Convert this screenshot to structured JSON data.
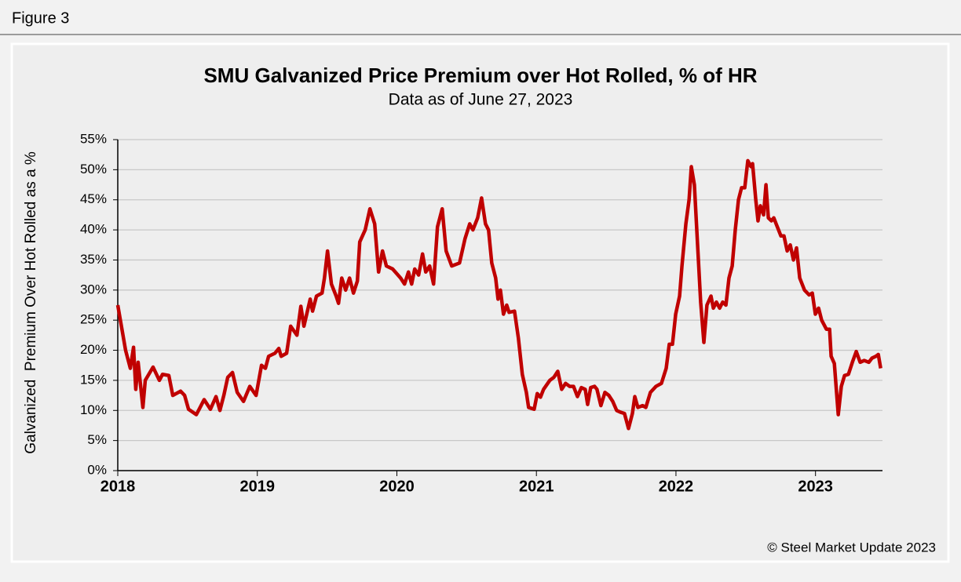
{
  "figure_label": "Figure 3",
  "footer": "© Steel Market Update 2023",
  "chart_data": {
    "type": "line",
    "title": "SMU Galvanized Price Premium over Hot Rolled, % of HR",
    "subtitle": "Data as of June 27, 2023",
    "y_label": "Galvanized  Premium Over Hot Rolled as a %",
    "grid": true,
    "xlim": [
      2018,
      2023.48
    ],
    "xticks": [
      2018,
      2019,
      2020,
      2021,
      2022,
      2023
    ],
    "ylim": [
      0,
      55
    ],
    "yticks": [
      {
        "value": 0,
        "label": "0%"
      },
      {
        "value": 5,
        "label": "5%"
      },
      {
        "value": 10,
        "label": "10%"
      },
      {
        "value": 15,
        "label": "15%"
      },
      {
        "value": 20,
        "label": "20%"
      },
      {
        "value": 25,
        "label": "25%"
      },
      {
        "value": 30,
        "label": "30%"
      },
      {
        "value": 35,
        "label": "35%"
      },
      {
        "value": 40,
        "label": "40%"
      },
      {
        "value": 45,
        "label": "45%"
      },
      {
        "value": 50,
        "label": "50%"
      },
      {
        "value": 55,
        "label": "55%"
      }
    ],
    "x": [
      2018.0,
      2018.056,
      2018.09,
      2018.113,
      2018.129,
      2018.146,
      2018.18,
      2018.197,
      2018.253,
      2018.298,
      2018.321,
      2018.366,
      2018.394,
      2018.45,
      2018.479,
      2018.507,
      2018.563,
      2018.619,
      2018.664,
      2018.704,
      2018.732,
      2018.76,
      2018.788,
      2018.822,
      2018.856,
      2018.901,
      2018.946,
      2018.991,
      2019.03,
      2019.058,
      2019.081,
      2019.126,
      2019.154,
      2019.171,
      2019.21,
      2019.239,
      2019.284,
      2019.312,
      2019.334,
      2019.379,
      2019.396,
      2019.424,
      2019.464,
      2019.481,
      2019.503,
      2019.531,
      2019.565,
      2019.582,
      2019.605,
      2019.633,
      2019.661,
      2019.689,
      2019.717,
      2019.734,
      2019.773,
      2019.807,
      2019.841,
      2019.869,
      2019.897,
      2019.925,
      2019.97,
      2020.027,
      2020.055,
      2020.083,
      2020.106,
      2020.128,
      2020.156,
      2020.184,
      2020.207,
      2020.235,
      2020.263,
      2020.291,
      2020.325,
      2020.353,
      2020.393,
      2020.449,
      2020.488,
      2020.522,
      2020.545,
      2020.579,
      2020.607,
      2020.635,
      2020.657,
      2020.68,
      2020.708,
      2020.725,
      2020.742,
      2020.764,
      2020.787,
      2020.804,
      2020.843,
      2020.871,
      2020.899,
      2020.928,
      2020.944,
      2020.984,
      2021.006,
      2021.029,
      2021.051,
      2021.096,
      2021.125,
      2021.153,
      2021.181,
      2021.209,
      2021.238,
      2021.266,
      2021.294,
      2021.322,
      2021.35,
      2021.367,
      2021.389,
      2021.417,
      2021.434,
      2021.462,
      2021.491,
      2021.519,
      2021.547,
      2021.575,
      2021.603,
      2021.631,
      2021.66,
      2021.688,
      2021.705,
      2021.727,
      2021.761,
      2021.784,
      2021.817,
      2021.857,
      2021.896,
      2021.93,
      2021.952,
      2021.975,
      2021.998,
      2022.026,
      2022.043,
      2022.071,
      2022.094,
      2022.11,
      2022.132,
      2022.155,
      2022.177,
      2022.2,
      2022.222,
      2022.251,
      2022.268,
      2022.29,
      2022.313,
      2022.335,
      2022.358,
      2022.38,
      2022.403,
      2022.425,
      2022.448,
      2022.47,
      2022.493,
      2022.515,
      2022.538,
      2022.549,
      2022.572,
      2022.588,
      2022.605,
      2022.628,
      2022.645,
      2022.662,
      2022.684,
      2022.701,
      2022.718,
      2022.752,
      2022.774,
      2022.797,
      2022.819,
      2022.842,
      2022.864,
      2022.887,
      2022.921,
      2022.954,
      2022.977,
      2022.999,
      2023.022,
      2023.044,
      2023.078,
      2023.101,
      2023.112,
      2023.135,
      2023.163,
      2023.185,
      2023.208,
      2023.236,
      2023.264,
      2023.292,
      2023.32,
      2023.349,
      2023.382,
      2023.405,
      2023.433,
      2023.45,
      2023.467
    ],
    "series": [
      {
        "color": "#c00000",
        "values": [
          27.5,
          20,
          17,
          20.5,
          13.5,
          18,
          10.5,
          15,
          17.2,
          15,
          16,
          15.8,
          12.5,
          13.2,
          12.5,
          10.2,
          9.3,
          11.8,
          10.2,
          12.3,
          10,
          12.5,
          15.5,
          16.3,
          13,
          11.5,
          14,
          12.5,
          17.5,
          17,
          19,
          19.5,
          20.3,
          19,
          19.5,
          24,
          22.5,
          27.3,
          24,
          28.5,
          26.5,
          29,
          29.5,
          32,
          36.5,
          31,
          29,
          27.8,
          32,
          30,
          32,
          29.5,
          31.5,
          38,
          40,
          43.5,
          41,
          33,
          36.5,
          34,
          33.5,
          32,
          31,
          33,
          31,
          33.5,
          32.5,
          36,
          33,
          34,
          31,
          40.5,
          43.5,
          36.5,
          34,
          34.5,
          38.5,
          41,
          40,
          42,
          45.3,
          41,
          40,
          34.5,
          32,
          28.5,
          30,
          26,
          27.5,
          26.3,
          26.5,
          22,
          16,
          13,
          10.5,
          10.2,
          12.8,
          12.2,
          13.5,
          15,
          15.5,
          16.5,
          13.5,
          14.5,
          14,
          14,
          12.3,
          13.8,
          13.5,
          11,
          13.8,
          14,
          13.5,
          10.8,
          13,
          12.5,
          11.5,
          10,
          9.7,
          9.5,
          7,
          9.5,
          12.3,
          10.5,
          10.8,
          10.5,
          13,
          14,
          14.5,
          17,
          21,
          21,
          26,
          29,
          34,
          41,
          45,
          50.5,
          47.5,
          37.5,
          28,
          21.3,
          27.5,
          29,
          27,
          28,
          27,
          28,
          27.5,
          32,
          34,
          40,
          45,
          47,
          47,
          51.5,
          50.5,
          51,
          45,
          41.5,
          44,
          42.5,
          47.5,
          42,
          41.5,
          42,
          41,
          39,
          39,
          36.5,
          37.5,
          35,
          37,
          32,
          30,
          29.2,
          29.5,
          26,
          27,
          25,
          23.5,
          23.5,
          19,
          17.8,
          9.3,
          14,
          15.8,
          16,
          18,
          19.8,
          18,
          18.3,
          18,
          18.7,
          19,
          19.3,
          17
        ]
      }
    ]
  }
}
